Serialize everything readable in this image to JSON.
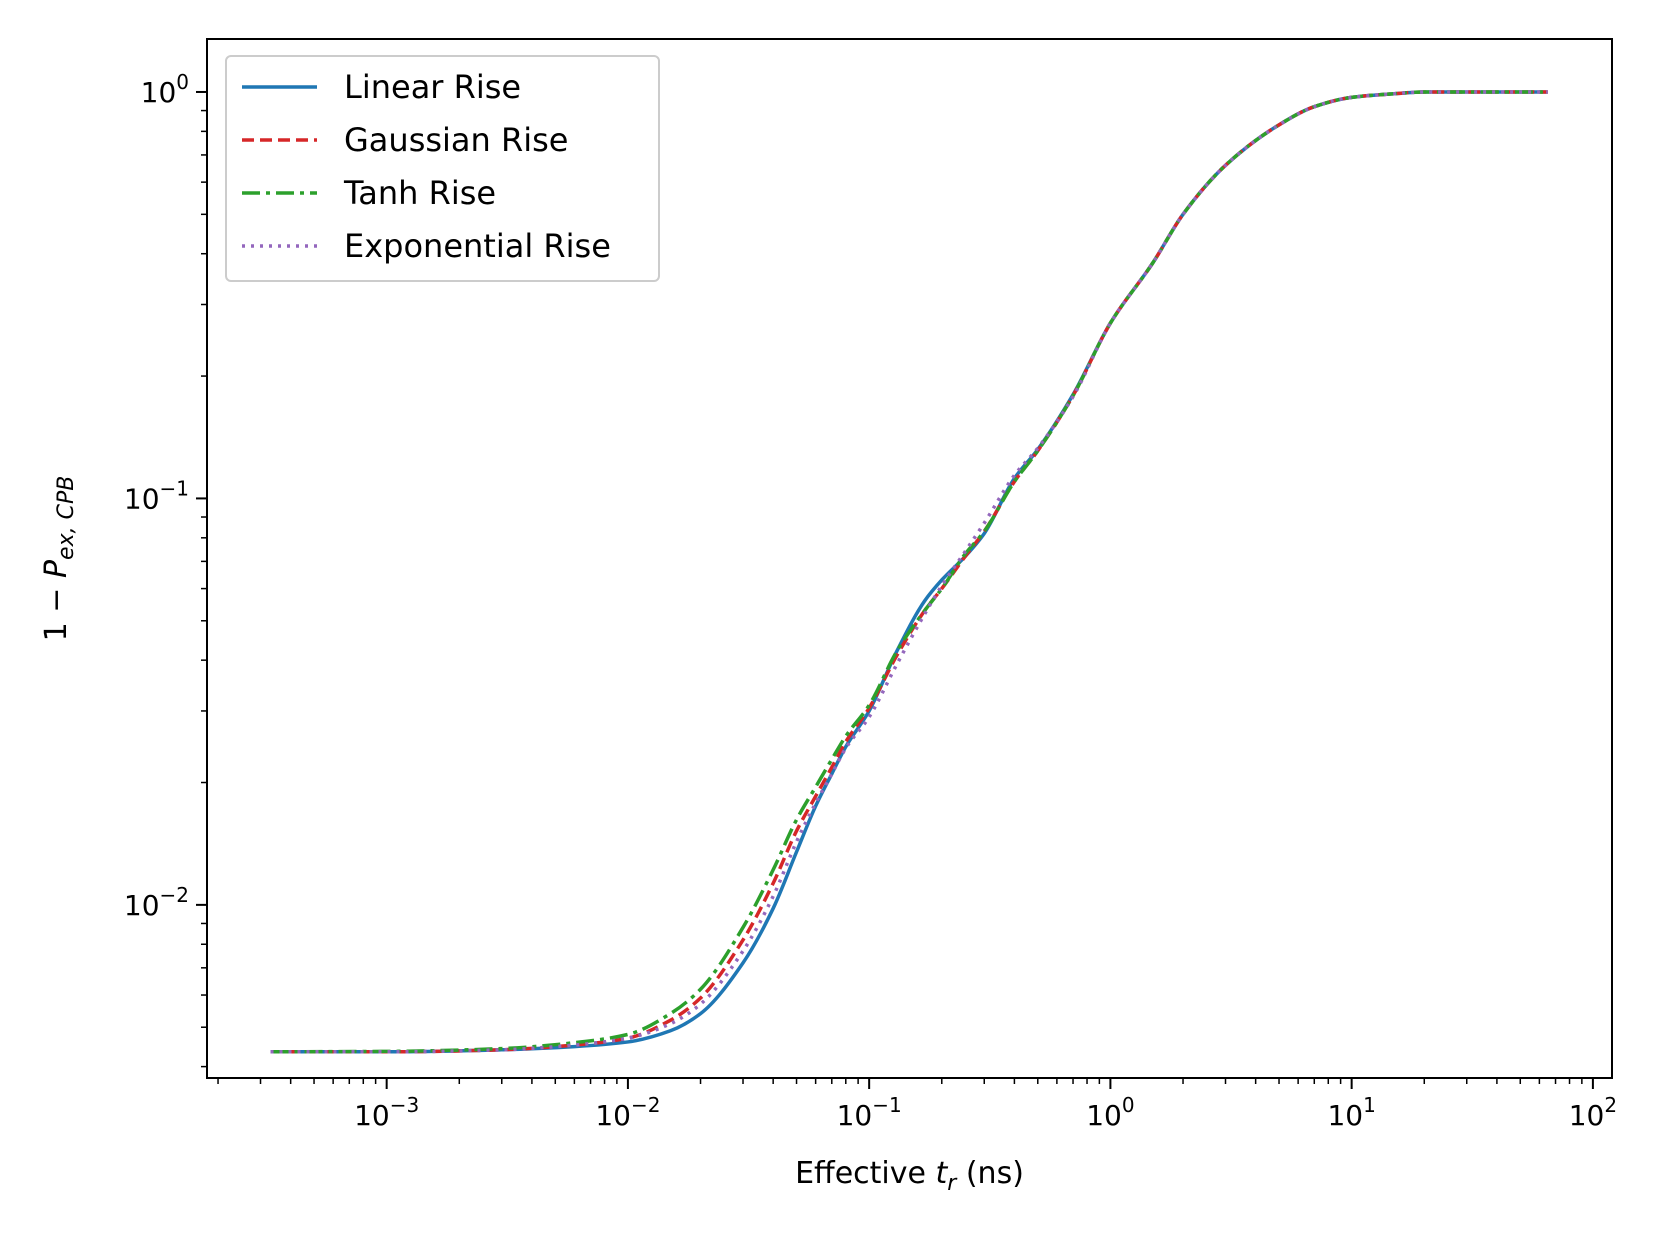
{
  "chart_data": {
    "type": "line",
    "title": "",
    "xlabel": {
      "prefix": "Effective ",
      "var": "t",
      "sub": "r",
      "suffix": " (ns)"
    },
    "ylabel": {
      "prefix": "1 − ",
      "var": "P",
      "sub": "ex, CPB"
    },
    "xscale": "log",
    "yscale": "log",
    "xlim": [
      0.00018,
      120
    ],
    "ylim": [
      0.00375,
      1.35
    ],
    "xticks": [
      {
        "value": 0.001,
        "base": "10",
        "exp": "−3"
      },
      {
        "value": 0.01,
        "base": "10",
        "exp": "−2"
      },
      {
        "value": 0.1,
        "base": "10",
        "exp": "−1"
      },
      {
        "value": 1,
        "base": "10",
        "exp": "0"
      },
      {
        "value": 10,
        "base": "10",
        "exp": "1"
      },
      {
        "value": 100,
        "base": "10",
        "exp": "2"
      }
    ],
    "yticks": [
      {
        "value": 0.01,
        "base": "10",
        "exp": "−2"
      },
      {
        "value": 0.1,
        "base": "10",
        "exp": "−1"
      },
      {
        "value": 1,
        "base": "10",
        "exp": "0"
      }
    ],
    "legend_position": "upper-left",
    "series": [
      {
        "name": "Linear Rise",
        "color": "#1f77b4",
        "dash": "solid",
        "points": [
          [
            0.00033,
            0.00435
          ],
          [
            0.001,
            0.00435
          ],
          [
            0.003,
            0.0044
          ],
          [
            0.006,
            0.00448
          ],
          [
            0.01,
            0.0046
          ],
          [
            0.015,
            0.0049
          ],
          [
            0.02,
            0.0054
          ],
          [
            0.03,
            0.0072
          ],
          [
            0.04,
            0.0098
          ],
          [
            0.05,
            0.0135
          ],
          [
            0.06,
            0.0175
          ],
          [
            0.07,
            0.021
          ],
          [
            0.08,
            0.0245
          ],
          [
            0.1,
            0.03
          ],
          [
            0.13,
            0.042
          ],
          [
            0.17,
            0.056
          ],
          [
            0.2,
            0.063
          ],
          [
            0.25,
            0.072
          ],
          [
            0.3,
            0.082
          ],
          [
            0.4,
            0.112
          ],
          [
            0.5,
            0.132
          ],
          [
            0.7,
            0.18
          ],
          [
            1.0,
            0.27
          ],
          [
            1.5,
            0.38
          ],
          [
            2,
            0.5
          ],
          [
            3,
            0.66
          ],
          [
            5,
            0.83
          ],
          [
            7,
            0.92
          ],
          [
            10,
            0.97
          ],
          [
            15,
            0.99
          ],
          [
            20,
            1.0
          ],
          [
            65,
            1.0
          ]
        ]
      },
      {
        "name": "Gaussian Rise",
        "color": "#d62728",
        "dash": "dashed",
        "points": [
          [
            0.00033,
            0.00435
          ],
          [
            0.001,
            0.00435
          ],
          [
            0.003,
            0.0044
          ],
          [
            0.006,
            0.00452
          ],
          [
            0.01,
            0.0047
          ],
          [
            0.015,
            0.0052
          ],
          [
            0.02,
            0.0059
          ],
          [
            0.03,
            0.0082
          ],
          [
            0.04,
            0.0113
          ],
          [
            0.05,
            0.0152
          ],
          [
            0.06,
            0.0185
          ],
          [
            0.07,
            0.0218
          ],
          [
            0.08,
            0.0252
          ],
          [
            0.1,
            0.0305
          ],
          [
            0.13,
            0.041
          ],
          [
            0.17,
            0.053
          ],
          [
            0.2,
            0.06
          ],
          [
            0.25,
            0.072
          ],
          [
            0.3,
            0.083
          ],
          [
            0.4,
            0.11
          ],
          [
            0.5,
            0.131
          ],
          [
            0.7,
            0.179
          ],
          [
            1.0,
            0.27
          ],
          [
            1.5,
            0.38
          ],
          [
            2,
            0.5
          ],
          [
            3,
            0.66
          ],
          [
            5,
            0.83
          ],
          [
            7,
            0.92
          ],
          [
            10,
            0.97
          ],
          [
            15,
            0.99
          ],
          [
            20,
            1.0
          ],
          [
            65,
            1.0
          ]
        ]
      },
      {
        "name": "Tanh Rise",
        "color": "#2ca02c",
        "dash": "dashdot",
        "points": [
          [
            0.00033,
            0.00435
          ],
          [
            0.001,
            0.00436
          ],
          [
            0.003,
            0.00443
          ],
          [
            0.006,
            0.00458
          ],
          [
            0.01,
            0.0048
          ],
          [
            0.015,
            0.0054
          ],
          [
            0.02,
            0.0062
          ],
          [
            0.03,
            0.0088
          ],
          [
            0.04,
            0.0122
          ],
          [
            0.05,
            0.0162
          ],
          [
            0.06,
            0.0195
          ],
          [
            0.07,
            0.0228
          ],
          [
            0.08,
            0.026
          ],
          [
            0.1,
            0.031
          ],
          [
            0.13,
            0.042
          ],
          [
            0.17,
            0.053
          ],
          [
            0.2,
            0.06
          ],
          [
            0.25,
            0.073
          ],
          [
            0.3,
            0.083
          ],
          [
            0.4,
            0.11
          ],
          [
            0.5,
            0.131
          ],
          [
            0.7,
            0.179
          ],
          [
            1.0,
            0.27
          ],
          [
            1.5,
            0.38
          ],
          [
            2,
            0.5
          ],
          [
            3,
            0.66
          ],
          [
            5,
            0.83
          ],
          [
            7,
            0.92
          ],
          [
            10,
            0.97
          ],
          [
            15,
            0.99
          ],
          [
            20,
            1.0
          ],
          [
            65,
            1.0
          ]
        ]
      },
      {
        "name": "Exponential Rise",
        "color": "#9467bd",
        "dash": "dotted",
        "points": [
          [
            0.00033,
            0.00435
          ],
          [
            0.001,
            0.00435
          ],
          [
            0.003,
            0.0044
          ],
          [
            0.006,
            0.00452
          ],
          [
            0.01,
            0.0047
          ],
          [
            0.015,
            0.0051
          ],
          [
            0.02,
            0.0057
          ],
          [
            0.03,
            0.0077
          ],
          [
            0.04,
            0.0105
          ],
          [
            0.05,
            0.0143
          ],
          [
            0.06,
            0.0178
          ],
          [
            0.07,
            0.021
          ],
          [
            0.08,
            0.0243
          ],
          [
            0.1,
            0.029
          ],
          [
            0.13,
            0.039
          ],
          [
            0.17,
            0.052
          ],
          [
            0.2,
            0.061
          ],
          [
            0.25,
            0.074
          ],
          [
            0.3,
            0.087
          ],
          [
            0.4,
            0.114
          ],
          [
            0.5,
            0.133
          ],
          [
            0.7,
            0.178
          ],
          [
            1.0,
            0.27
          ],
          [
            1.5,
            0.38
          ],
          [
            2,
            0.5
          ],
          [
            3,
            0.66
          ],
          [
            5,
            0.83
          ],
          [
            7,
            0.92
          ],
          [
            10,
            0.97
          ],
          [
            15,
            0.99
          ],
          [
            20,
            1.0
          ],
          [
            65,
            1.0
          ]
        ]
      }
    ]
  }
}
